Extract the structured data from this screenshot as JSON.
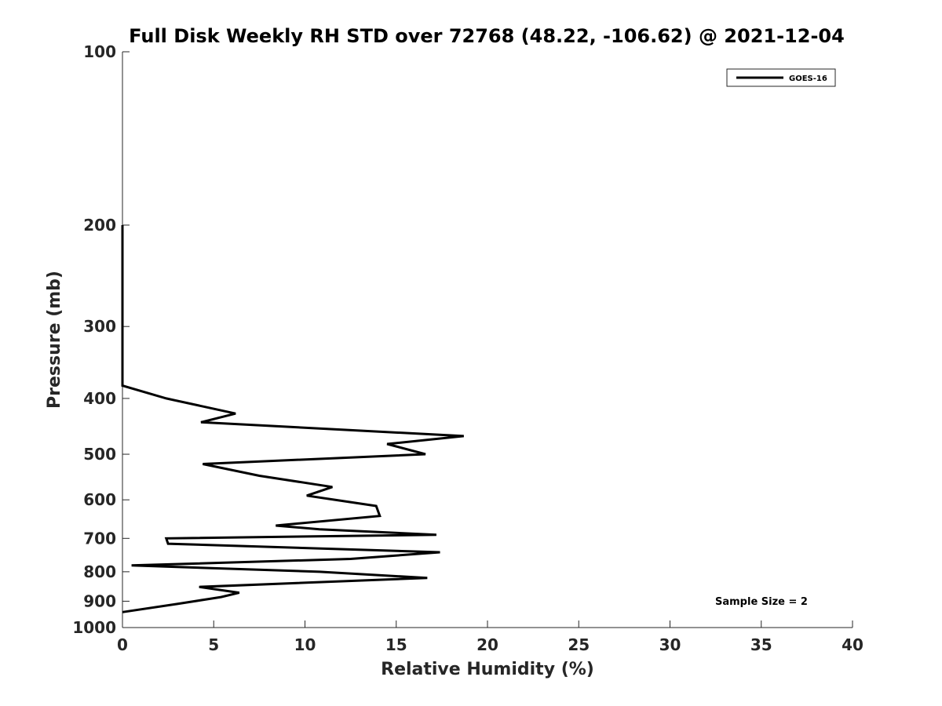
{
  "chart_data": {
    "type": "line",
    "title": "Full Disk Weekly RH STD over 72768 (48.22, -106.62) @ 2021-12-04",
    "xlabel": "Relative Humidity (%)",
    "ylabel": "Pressure (mb)",
    "xlim": [
      0,
      40
    ],
    "ylim": [
      100,
      1000
    ],
    "y_scale": "log",
    "y_reversed": true,
    "xticks": [
      0,
      5,
      10,
      15,
      20,
      25,
      30,
      35,
      40
    ],
    "yticks": [
      100,
      200,
      300,
      400,
      500,
      600,
      700,
      800,
      900,
      1000
    ],
    "grid": false,
    "legend": {
      "placement": "top-right"
    },
    "annotation": "Sample Size = 2",
    "series": [
      {
        "name": "GOES-16",
        "color": "#000000",
        "x": [
          0,
          0,
          0,
          0,
          0,
          2.4,
          6.2,
          4.3,
          18.7,
          14.5,
          16.6,
          4.4,
          7.5,
          11.5,
          10.1,
          13.9,
          14.1,
          8.4,
          10.8,
          17.2,
          2.4,
          2.5,
          17.4,
          12.5,
          0.5,
          10.8,
          16.7,
          4.2,
          6.4,
          5.4,
          3.0,
          0
        ],
        "y": [
          200,
          250,
          300,
          350,
          380,
          400,
          425,
          440,
          465,
          480,
          500,
          520,
          545,
          570,
          590,
          615,
          640,
          665,
          675,
          690,
          700,
          715,
          740,
          760,
          780,
          800,
          820,
          850,
          870,
          885,
          910,
          940
        ]
      }
    ]
  }
}
